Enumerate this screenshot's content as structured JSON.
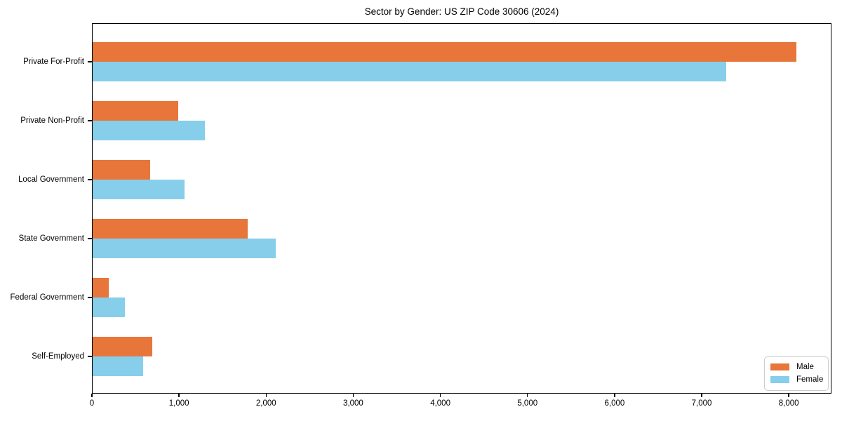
{
  "title": "Sector by Gender: US ZIP Code 30606 (2024)",
  "chart_data": {
    "type": "bar",
    "orientation": "horizontal",
    "title": "Sector by Gender: US ZIP Code 30606 (2024)",
    "xlabel": "",
    "ylabel": "",
    "grid": false,
    "categories": [
      "Private For-Profit",
      "Private Non-Profit",
      "Local Government",
      "State Government",
      "Federal Government",
      "Self-Employed"
    ],
    "series": [
      {
        "name": "Male",
        "color": "#E8763B",
        "values": [
          8090,
          990,
          670,
          1790,
          190,
          690
        ]
      },
      {
        "name": "Female",
        "color": "#87CEEB",
        "values": [
          7280,
          1300,
          1060,
          2110,
          380,
          590
        ]
      }
    ],
    "xlim": [
      0,
      8490
    ],
    "x_ticks": [
      0,
      1000,
      2000,
      3000,
      4000,
      5000,
      6000,
      7000,
      8000
    ],
    "x_tick_labels": [
      "0",
      "1,000",
      "2,000",
      "3,000",
      "4,000",
      "5,000",
      "6,000",
      "7,000",
      "8,000"
    ],
    "legend": {
      "position": "lower-right",
      "entries": [
        "Male",
        "Female"
      ]
    }
  }
}
